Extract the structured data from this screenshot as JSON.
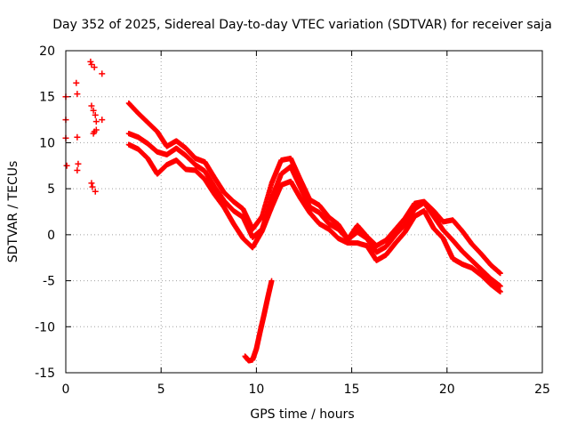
{
  "chart_data": {
    "type": "scatter",
    "title": "Day 352 of 2025, Sidereal Day-to-day VTEC variation (SDTVAR) for receiver saja",
    "xlabel": "GPS time / hours",
    "ylabel": "SDTVAR / TECUs",
    "xlim": [
      0,
      25
    ],
    "ylim": [
      -15,
      20
    ],
    "xticks": [
      0,
      5,
      10,
      15,
      20,
      25
    ],
    "yticks": [
      -15,
      -10,
      -5,
      0,
      5,
      10,
      15,
      20
    ],
    "grid": true,
    "marker": "+",
    "color": "#ff0000",
    "series": [
      {
        "name": "trace-a",
        "x": [
          3.3,
          3.8,
          4.3,
          4.8,
          5.3,
          5.8,
          6.3,
          6.8,
          7.3,
          7.8,
          8.3,
          8.8,
          9.3,
          9.8,
          10.3,
          10.8,
          11.3,
          11.8,
          12.3,
          12.8,
          13.3,
          13.8,
          14.3,
          14.8,
          15.3,
          15.8,
          16.3,
          16.8,
          17.3,
          17.8,
          18.3,
          18.8,
          19.3,
          19.8,
          20.3,
          20.8,
          21.3,
          21.8,
          22.3,
          22.8
        ],
        "y": [
          14.3,
          13.2,
          12.2,
          11.2,
          9.6,
          10.2,
          9.4,
          8.3,
          7.9,
          6.2,
          4.6,
          3.6,
          2.8,
          0.6,
          2.0,
          5.6,
          8.1,
          8.3,
          6.0,
          3.8,
          3.2,
          1.9,
          1.1,
          -0.5,
          1.0,
          -0.2,
          -1.2,
          -0.6,
          0.6,
          1.8,
          3.4,
          3.6,
          2.6,
          1.4,
          1.6,
          0.4,
          -1.0,
          -2.1,
          -3.3,
          -4.2
        ]
      },
      {
        "name": "trace-b",
        "x": [
          3.3,
          3.8,
          4.3,
          4.8,
          5.3,
          5.8,
          6.3,
          6.8,
          7.3,
          7.8,
          8.3,
          8.8,
          9.3,
          9.8,
          10.3,
          10.8,
          11.3,
          11.8,
          12.3,
          12.8,
          13.3,
          13.8,
          14.3,
          14.8,
          15.3,
          15.8,
          16.3,
          16.8,
          17.3,
          17.8,
          18.3,
          18.8,
          19.3,
          19.8,
          20.3,
          20.8,
          21.3,
          21.8,
          22.3,
          22.8
        ],
        "y": [
          11.0,
          10.6,
          9.9,
          9.0,
          8.7,
          9.4,
          8.6,
          7.6,
          6.9,
          5.2,
          3.7,
          2.6,
          1.9,
          -0.3,
          0.6,
          3.9,
          6.6,
          7.4,
          5.2,
          3.0,
          2.4,
          1.2,
          0.6,
          -0.5,
          0.3,
          -0.4,
          -1.9,
          -1.3,
          0.0,
          1.1,
          2.8,
          3.5,
          2.0,
          0.5,
          -0.6,
          -1.8,
          -2.8,
          -3.8,
          -4.8,
          -5.6
        ]
      },
      {
        "name": "trace-c",
        "x": [
          3.3,
          3.8,
          4.3,
          4.8,
          5.3,
          5.8,
          6.3,
          6.8,
          7.3,
          7.8,
          8.3,
          8.8,
          9.3,
          9.8,
          10.3,
          10.8,
          11.3,
          11.8,
          12.3,
          12.8,
          13.3,
          13.8,
          14.3,
          14.8,
          15.3,
          15.8,
          16.3,
          16.8,
          17.3,
          17.8,
          18.3,
          18.8,
          19.3,
          19.8,
          20.3,
          20.8,
          21.3,
          21.8,
          22.3,
          22.8
        ],
        "y": [
          9.8,
          9.3,
          8.3,
          6.6,
          7.6,
          8.1,
          7.1,
          7.0,
          6.0,
          4.4,
          3.0,
          1.2,
          -0.4,
          -1.4,
          0.4,
          3.0,
          5.4,
          5.8,
          4.0,
          2.4,
          1.2,
          0.6,
          -0.4,
          -0.9,
          -0.9,
          -1.2,
          -2.8,
          -2.2,
          -0.9,
          0.3,
          2.0,
          2.6,
          0.7,
          -0.4,
          -2.6,
          -3.2,
          -3.6,
          -4.4,
          -5.4,
          -6.2
        ]
      },
      {
        "name": "early-segment",
        "x": [
          0.0,
          0.0,
          0.0,
          0.05,
          0.55,
          0.6,
          0.6,
          0.65,
          0.6,
          1.3,
          1.35,
          1.5,
          1.35,
          1.45,
          1.55,
          1.45,
          1.5,
          1.6,
          1.9,
          1.9,
          1.6,
          1.35,
          1.4,
          1.55
        ],
        "y": [
          15.0,
          12.5,
          10.5,
          7.5,
          16.5,
          15.3,
          10.6,
          7.7,
          7.0,
          18.8,
          18.5,
          18.2,
          14.0,
          13.5,
          13.0,
          11.0,
          11.2,
          11.4,
          17.5,
          12.5,
          12.3,
          5.6,
          5.2,
          4.7
        ]
      },
      {
        "name": "low-segment",
        "x": [
          9.4,
          9.6,
          9.8,
          10.0,
          10.2,
          10.4,
          10.6,
          10.8
        ],
        "y": [
          -13.2,
          -13.7,
          -13.6,
          -12.4,
          -10.5,
          -8.7,
          -6.8,
          -5.0
        ]
      }
    ]
  }
}
